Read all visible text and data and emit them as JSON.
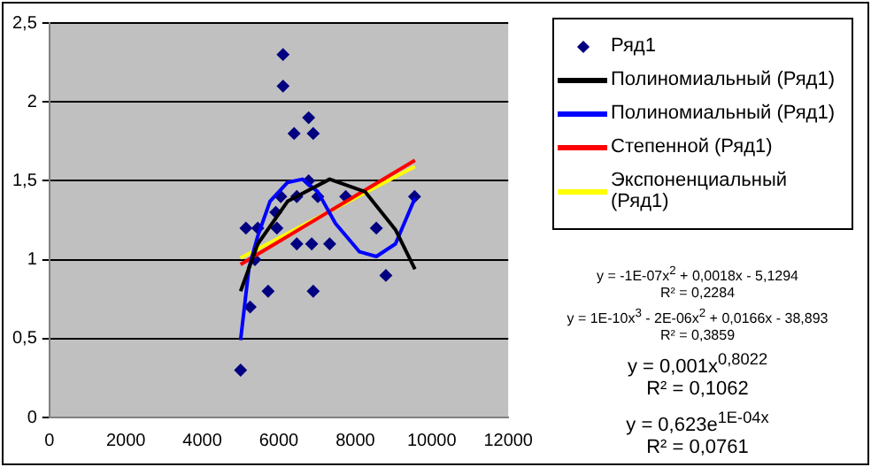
{
  "chart_data": {
    "type": "scatter",
    "xlim": [
      0,
      12000
    ],
    "xticks": [
      0,
      2000,
      4000,
      6000,
      8000,
      10000,
      12000
    ],
    "ylim": [
      0,
      2.5
    ],
    "yticks": [
      0,
      {
        "value": 0.5,
        "label": "0,5"
      },
      1,
      {
        "value": 1.5,
        "label": "1,5"
      },
      2,
      {
        "value": 2.5,
        "label": "2,5"
      }
    ],
    "grid": "y",
    "legend": "right",
    "series": [
      {
        "name": "Ряд1",
        "marker": "diamond",
        "color": "#000080",
        "x": [
          5000,
          5140,
          5450,
          5250,
          5375,
          5720,
          5920,
          5950,
          6050,
          6110,
          6110,
          6400,
          6470,
          6470,
          6780,
          6780,
          6860,
          6900,
          6900,
          7020,
          7330,
          7750,
          8550,
          8800,
          9550
        ],
        "values": [
          0.3,
          1.2,
          1.2,
          0.7,
          1.0,
          0.8,
          1.3,
          1.2,
          1.4,
          2.3,
          2.1,
          1.8,
          1.4,
          1.1,
          1.9,
          1.5,
          1.1,
          1.8,
          0.8,
          1.4,
          1.1,
          1.4,
          1.2,
          0.9,
          1.4
        ]
      },
      {
        "name": "Полиномиальный (Ряд1)",
        "type": "line",
        "marker": "none",
        "color": "#000000",
        "x": [
          5000,
          5450,
          6230,
          7330,
          8260,
          9050,
          9560
        ],
        "values": [
          0.8,
          1.1,
          1.37,
          1.51,
          1.43,
          1.19,
          0.94
        ]
      },
      {
        "name": "Полиномиальный (Ряд1)",
        "type": "line",
        "marker": "none",
        "color": "#0000ff",
        "x": [
          5000,
          5220,
          5450,
          5770,
          6230,
          6620,
          7020,
          7480,
          8110,
          8550,
          9050,
          9560
        ],
        "values": [
          0.49,
          0.95,
          1.15,
          1.37,
          1.49,
          1.51,
          1.43,
          1.23,
          1.05,
          1.02,
          1.1,
          1.39
        ]
      },
      {
        "name": "Степенной (Ряд1)",
        "type": "line",
        "marker": "none",
        "color": "#ff0000",
        "x": [
          5000,
          9560
        ],
        "values": [
          0.97,
          1.63
        ]
      },
      {
        "name": "Экспоненциальный (Ряд1)",
        "type": "line",
        "marker": "none",
        "color": "#ffff00",
        "x": [
          5000,
          9560
        ],
        "values": [
          1.01,
          1.59
        ]
      }
    ],
    "annotations": [
      "y = -1E-07x$^{2}$ + 0,0018x - 5,1294",
      "R² = 0,2284",
      "y = 1E-10x$^{3}$ - 2E-06x$^{2}$ + 0,0166x - 38,893",
      "R² = 0,3859",
      "y = 0,001x$^{0,8022}$",
      "R² = 0,1062",
      "y = 0,623e$^{1E-04x}$",
      "R² = 0,0761"
    ]
  }
}
